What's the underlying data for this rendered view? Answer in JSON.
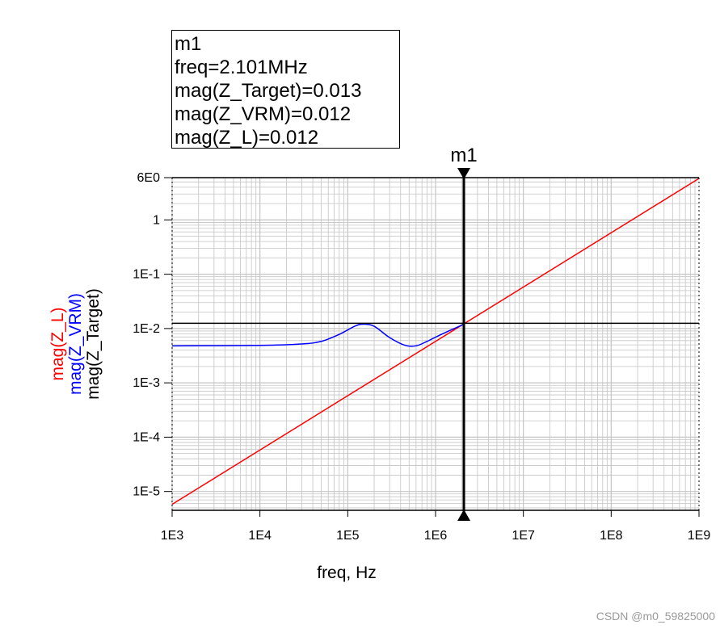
{
  "marker_readout": {
    "name": "m1",
    "lines": [
      "freq=2.101MHz",
      "mag(Z_Target)=0.013",
      "mag(Z_VRM)=0.012",
      "mag(Z_L)=0.012"
    ]
  },
  "watermark": "CSDN @m0_59825000",
  "colors": {
    "z_l": "#ff0000",
    "z_vrm": "#0000ff",
    "z_target": "#000000",
    "grid": "#c4c4c4"
  },
  "chart_data": {
    "type": "line",
    "xlabel": "freq, Hz",
    "ylabels": [
      {
        "text": "mag(Z_L)",
        "color": "#ff0000"
      },
      {
        "text": "mag(Z_VRM)",
        "color": "#0000ff"
      },
      {
        "text": "mag(Z_Target)",
        "color": "#000000"
      }
    ],
    "x_scale": "log",
    "y_scale": "log",
    "xlim": [
      1000,
      1000000000
    ],
    "ylim": [
      4.5e-06,
      6
    ],
    "x_ticks": [
      {
        "value": 1000,
        "label": "1E3"
      },
      {
        "value": 10000,
        "label": "1E4"
      },
      {
        "value": 100000,
        "label": "1E5"
      },
      {
        "value": 1000000,
        "label": "1E6"
      },
      {
        "value": 10000000,
        "label": "1E7"
      },
      {
        "value": 100000000,
        "label": "1E8"
      },
      {
        "value": 1000000000,
        "label": "1E9"
      }
    ],
    "y_ticks": [
      {
        "value": 6,
        "label": "6E0"
      },
      {
        "value": 1,
        "label": "1"
      },
      {
        "value": 0.1,
        "label": "1E-1"
      },
      {
        "value": 0.01,
        "label": "1E-2"
      },
      {
        "value": 0.001,
        "label": "1E-3"
      },
      {
        "value": 0.0001,
        "label": "1E-4"
      },
      {
        "value": 1e-05,
        "label": "1E-5"
      }
    ],
    "grid": true,
    "marker": {
      "name": "m1",
      "x": 2101000
    },
    "series": [
      {
        "name": "mag(Z_L)",
        "color": "#ff0000",
        "x": [
          1000,
          1000000000
        ],
        "y": [
          5.8e-06,
          5.8
        ]
      },
      {
        "name": "mag(Z_VRM)",
        "color": "#0000ff",
        "x": [
          1000,
          10000,
          30000,
          50000,
          80000,
          120000,
          150000,
          200000,
          300000,
          450000,
          600000,
          800000,
          1200000,
          2101000
        ],
        "y": [
          0.0048,
          0.0049,
          0.0052,
          0.0058,
          0.0078,
          0.011,
          0.012,
          0.011,
          0.0068,
          0.0049,
          0.0048,
          0.0058,
          0.008,
          0.012
        ]
      },
      {
        "name": "mag(Z_Target)",
        "color": "#000000",
        "x": [
          1000,
          1000000000
        ],
        "y": [
          0.0125,
          0.0125
        ]
      }
    ]
  }
}
